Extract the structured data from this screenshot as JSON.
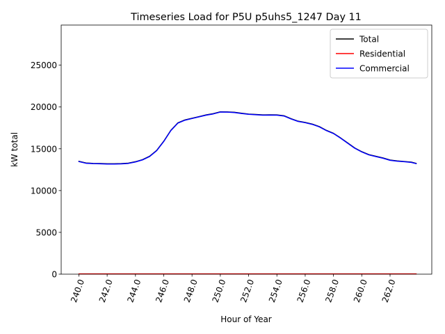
{
  "chart_data": {
    "type": "line",
    "title": "Timeseries Load for P5U p5uhs5_1247  Day 11",
    "xlabel": "Hour of Year",
    "ylabel": "kW total",
    "xlim": [
      238.75,
      264.95
    ],
    "ylim": [
      0,
      29800
    ],
    "x_ticks": [
      240,
      242,
      244,
      246,
      248,
      250,
      252,
      254,
      256,
      258,
      260,
      262
    ],
    "x_tick_labels": [
      "240.0",
      "242.0",
      "244.0",
      "246.0",
      "248.0",
      "250.0",
      "252.0",
      "254.0",
      "256.0",
      "258.0",
      "260.0",
      "262.0"
    ],
    "y_ticks": [
      0,
      5000,
      10000,
      15000,
      20000,
      25000
    ],
    "y_tick_labels": [
      "0",
      "5000",
      "10000",
      "15000",
      "20000",
      "25000"
    ],
    "legend_position": "top-right",
    "x": [
      240.0,
      240.5,
      241.0,
      241.5,
      242.0,
      242.5,
      243.0,
      243.5,
      244.0,
      244.5,
      245.0,
      245.5,
      246.0,
      246.5,
      247.0,
      247.5,
      248.0,
      248.5,
      249.0,
      249.5,
      250.0,
      250.5,
      251.0,
      251.5,
      252.0,
      252.5,
      253.0,
      253.5,
      254.0,
      254.5,
      255.0,
      255.5,
      256.0,
      256.5,
      257.0,
      257.5,
      258.0,
      258.5,
      259.0,
      259.5,
      260.0,
      260.5,
      261.0,
      261.5,
      262.0,
      262.5,
      263.0,
      263.5,
      263.85
    ],
    "series": [
      {
        "name": "Total",
        "color": "#000000",
        "values": [
          13500,
          13300,
          13250,
          13230,
          13200,
          13200,
          13220,
          13280,
          13450,
          13700,
          14100,
          14800,
          15900,
          17200,
          18100,
          18450,
          18650,
          18850,
          19050,
          19200,
          19420,
          19410,
          19360,
          19250,
          19150,
          19100,
          19050,
          19060,
          19050,
          18950,
          18600,
          18300,
          18150,
          17950,
          17650,
          17200,
          16850,
          16300,
          15700,
          15100,
          14650,
          14300,
          14100,
          13900,
          13650,
          13550,
          13480,
          13400,
          13250
        ]
      },
      {
        "name": "Residential",
        "color": "#ff0000",
        "values": [
          30,
          30,
          30,
          30,
          30,
          30,
          30,
          30,
          30,
          30,
          30,
          30,
          30,
          30,
          30,
          30,
          30,
          30,
          30,
          30,
          30,
          30,
          30,
          30,
          30,
          30,
          30,
          30,
          30,
          30,
          30,
          30,
          30,
          30,
          30,
          30,
          30,
          30,
          30,
          30,
          30,
          30,
          30,
          30,
          30,
          30,
          30,
          30,
          30
        ]
      },
      {
        "name": "Commercial",
        "color": "#0000ff",
        "values": [
          13470,
          13270,
          13220,
          13200,
          13170,
          13170,
          13190,
          13250,
          13420,
          13670,
          14070,
          14770,
          15870,
          17170,
          18070,
          18420,
          18620,
          18820,
          19020,
          19170,
          19390,
          19380,
          19330,
          19220,
          19120,
          19070,
          19020,
          19030,
          19020,
          18920,
          18570,
          18270,
          18120,
          17920,
          17620,
          17170,
          16820,
          16270,
          15670,
          15070,
          14620,
          14270,
          14070,
          13870,
          13620,
          13520,
          13450,
          13370,
          13220
        ]
      }
    ]
  }
}
